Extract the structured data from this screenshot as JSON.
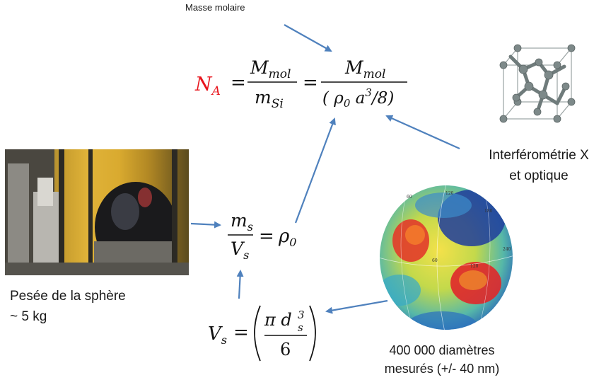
{
  "labels": {
    "masse_molaire": "Masse molaire",
    "interferometrie_line1": "Interférométrie X",
    "interferometrie_line2": "et optique",
    "pesee_line1": "Pesée de la sphère",
    "pesee_line2": "~ 5 kg",
    "diametres_line1": "400 000 diamètres",
    "diametres_line2": "mesurés (+/- 40 nm)"
  },
  "equations": {
    "avogadro": {
      "lhs_symbol": "N",
      "lhs_subscript": "A",
      "frac1_num": "M",
      "frac1_num_sub": "mol",
      "frac1_den": "m",
      "frac1_den_sub": "Si",
      "frac2_num": "M",
      "frac2_num_sub": "mol",
      "frac2_den_open": "( ρ",
      "frac2_den_rho_sub": "0",
      "frac2_den_a": " a",
      "frac2_den_exp": "3",
      "frac2_den_close": "/8)",
      "equals": "="
    },
    "density": {
      "num": "m",
      "num_sub": "s",
      "den": "V",
      "den_sub": "s",
      "equals": "=",
      "rho": "ρ",
      "rho_sub": "0"
    },
    "volume": {
      "lhs": "V",
      "lhs_sub": "s",
      "equals": "=",
      "num_pi": "π",
      "num_d": " d",
      "num_d_sup": "3",
      "num_d_sub": "s",
      "den": "6"
    }
  },
  "colors": {
    "arrow": "#4f81bd",
    "avogadro_symbol": "#e8141c",
    "text": "#1a1a1a"
  },
  "icons": {
    "crystal": "silicon-crystal-lattice-icon",
    "sphere": "sphere-diameter-map-icon",
    "photo": "sphere-weighing-photo"
  },
  "sphere_map_ticks": [
    "60",
    "120",
    "180",
    "240",
    "60",
    "120"
  ]
}
